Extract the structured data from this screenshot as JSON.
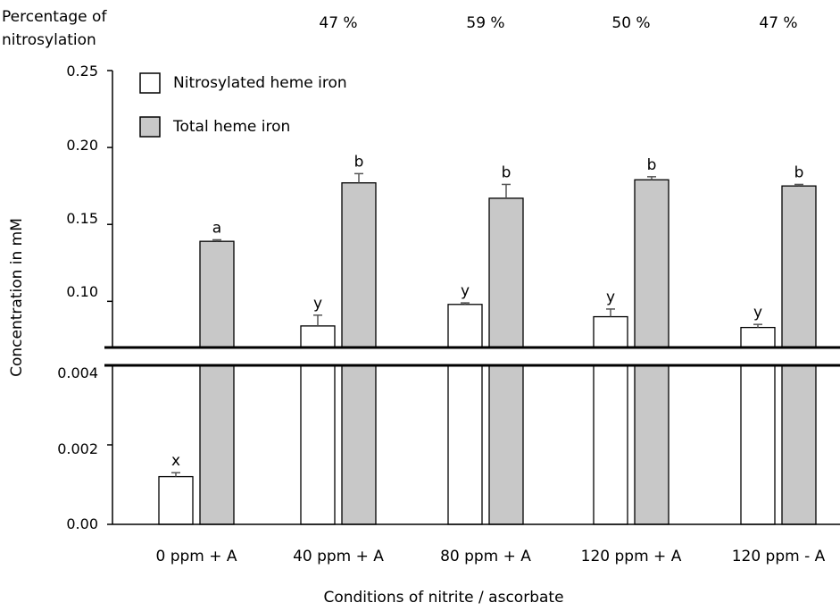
{
  "chart_data": {
    "type": "bar",
    "title": "",
    "xlabel": "Conditions of nitrite / ascorbate",
    "ylabel": "Concentration in mM",
    "percentage_header": [
      "Percentage of",
      "nitrosylation"
    ],
    "percentages": [
      "47 %",
      "59 %",
      "50 %",
      "47 %"
    ],
    "categories": [
      "0 ppm + A",
      "40 ppm + A",
      "80 ppm + A",
      "120 ppm + A",
      "120 ppm - A"
    ],
    "series": [
      {
        "name": "Nitrosylated heme iron",
        "color": "#ffffff",
        "values": [
          0.0012,
          0.084,
          0.098,
          0.09,
          0.083
        ],
        "errors": [
          0.0001,
          0.007,
          0.001,
          0.005,
          0.002
        ],
        "letters": [
          "x",
          "y",
          "y",
          "y",
          "y"
        ]
      },
      {
        "name": "Total heme iron",
        "color": "#c8c8c8",
        "values": [
          0.139,
          0.177,
          0.167,
          0.179,
          0.175
        ],
        "errors": [
          0.001,
          0.006,
          0.009,
          0.002,
          0.001
        ],
        "letters": [
          "a",
          "b",
          "b",
          "b",
          "b"
        ]
      }
    ],
    "y_axis_upper": {
      "range": [
        0.07,
        0.25
      ],
      "ticks": [
        "0.25",
        "0.20",
        "0.15",
        "0.10"
      ],
      "tick_values": [
        0.25,
        0.2,
        0.15,
        0.1
      ]
    },
    "y_axis_lower": {
      "range": [
        0,
        0.004
      ],
      "ticks": [
        "0.004",
        "0.002",
        "0.00"
      ],
      "tick_values": [
        0.004,
        0.002,
        0.0
      ]
    },
    "axis_break": true,
    "grid": false,
    "legend_position": "top-left"
  }
}
